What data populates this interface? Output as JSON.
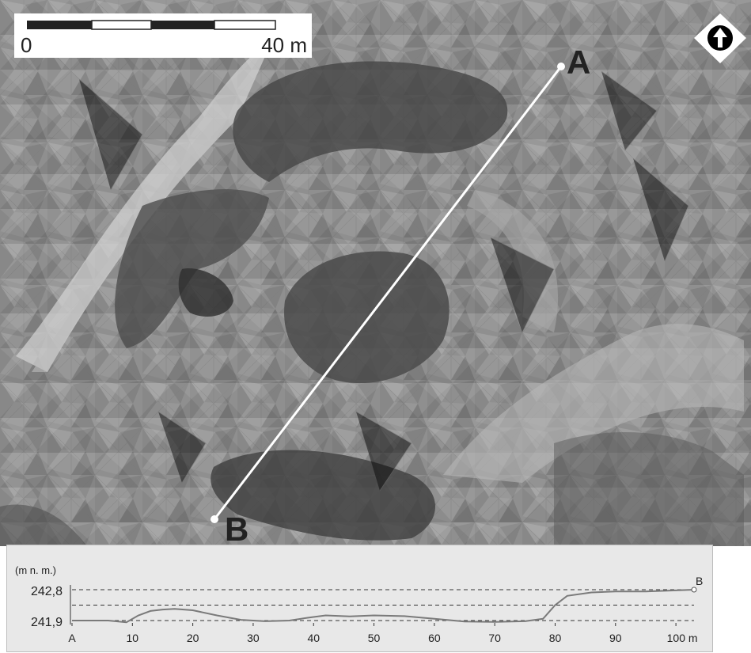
{
  "scale_bar": {
    "start_label": "0",
    "end_label": "40 m"
  },
  "north_arrow": {
    "icon": "north-arrow-icon"
  },
  "transect": {
    "start_label": "A",
    "end_label": "B",
    "line_color": "#ffffff"
  },
  "chart_data": {
    "type": "line",
    "ylabel": "(m n. m.)",
    "y_ticks": [
      "242,8",
      "241,9"
    ],
    "x_ticks": [
      "A",
      "10",
      "20",
      "30",
      "40",
      "50",
      "60",
      "70",
      "80",
      "90",
      "100 m"
    ],
    "end_label": "B",
    "ylim": [
      241.9,
      242.8
    ],
    "xlim": [
      0,
      103
    ],
    "gridlines": [
      242.8,
      242.35,
      241.9
    ],
    "line_color": "#7a7a7a",
    "series": [
      {
        "x": [
          0,
          3,
          6,
          9,
          11,
          13,
          15,
          17,
          20,
          24,
          28,
          32,
          36,
          39,
          42,
          46,
          50,
          55,
          60,
          65,
          70,
          75,
          78,
          80,
          82,
          86,
          90,
          95,
          100,
          103
        ],
        "y": [
          241.9,
          241.9,
          241.9,
          241.85,
          242.05,
          242.18,
          242.22,
          242.24,
          242.2,
          242.05,
          241.92,
          241.88,
          241.9,
          241.98,
          242.05,
          242.02,
          242.05,
          242.03,
          241.95,
          241.87,
          241.86,
          241.88,
          241.95,
          242.35,
          242.62,
          242.72,
          242.75,
          242.75,
          242.78,
          242.8
        ]
      }
    ]
  }
}
